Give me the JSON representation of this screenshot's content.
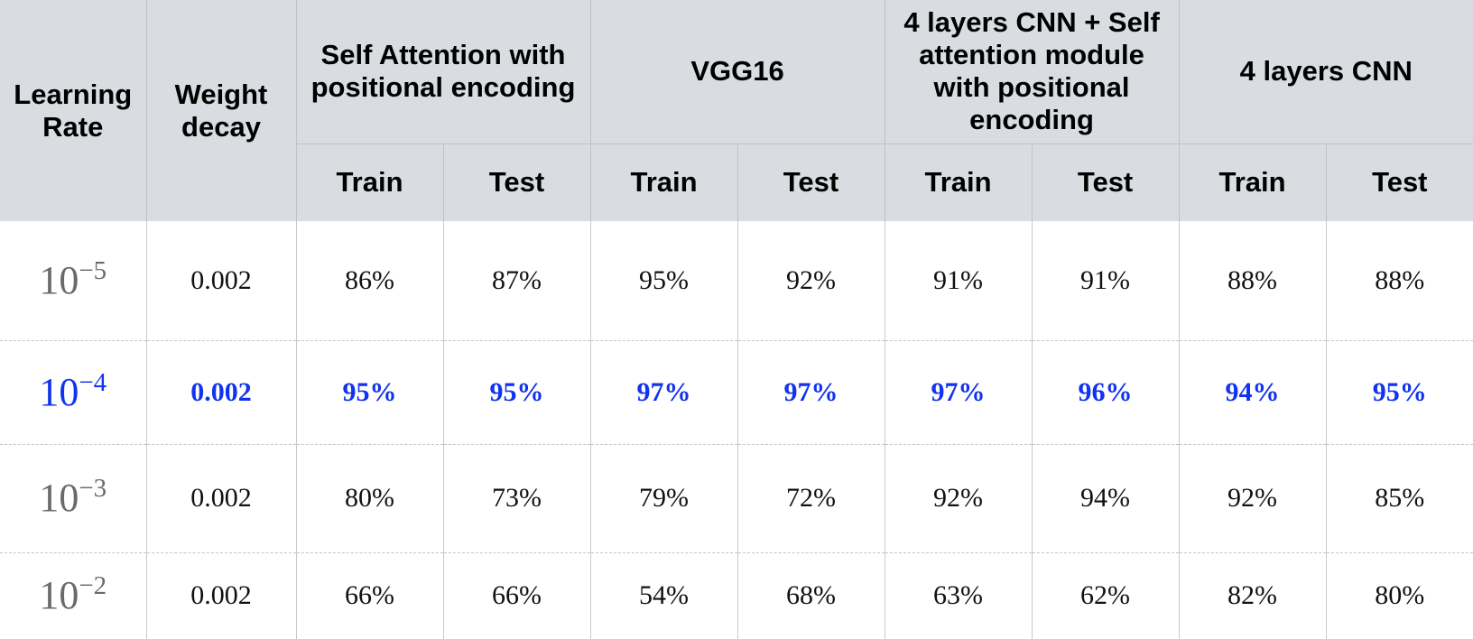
{
  "chart_data": {
    "type": "table",
    "header": {
      "learning_rate": "Learning Rate",
      "weight_decay": "Weight decay",
      "models": [
        "Self Attention with positional encoding",
        "VGG16",
        "4 layers CNN + Self attention module with positional encoding",
        "4 layers CNN"
      ],
      "splits": [
        "Train",
        "Test"
      ]
    },
    "rows": [
      {
        "lr_base": "10",
        "lr_exp": "−5",
        "weight_decay": "0.002",
        "values": [
          "86%",
          "87%",
          "95%",
          "92%",
          "91%",
          "91%",
          "88%",
          "88%"
        ],
        "highlight": false
      },
      {
        "lr_base": "10",
        "lr_exp": "−4",
        "weight_decay": "0.002",
        "values": [
          "95%",
          "95%",
          "97%",
          "97%",
          "97%",
          "96%",
          "94%",
          "95%"
        ],
        "highlight": true
      },
      {
        "lr_base": "10",
        "lr_exp": "−3",
        "weight_decay": "0.002",
        "values": [
          "80%",
          "73%",
          "79%",
          "72%",
          "92%",
          "94%",
          "92%",
          "85%"
        ],
        "highlight": false
      },
      {
        "lr_base": "10",
        "lr_exp": "−2",
        "weight_decay": "0.002",
        "values": [
          "66%",
          "66%",
          "54%",
          "68%",
          "63%",
          "62%",
          "82%",
          "80%"
        ],
        "highlight": false
      }
    ],
    "colors": {
      "header_background": "#d9dde2",
      "highlight_text": "#1133ee",
      "learning_rate_text": "#6a6a6a"
    }
  }
}
